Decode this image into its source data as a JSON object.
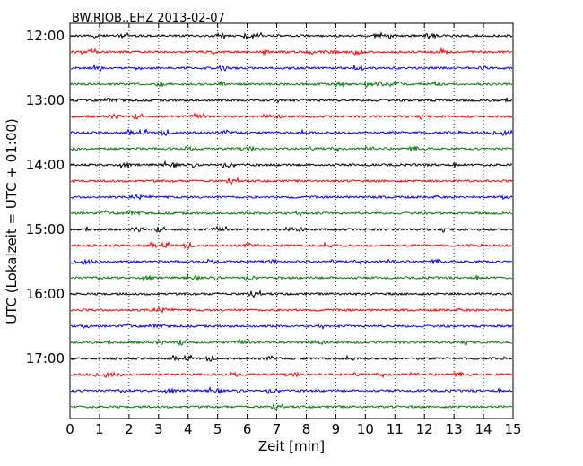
{
  "chart_data": {
    "type": "line",
    "title": "BW.RJOB..EHZ 2013-02-07",
    "xlabel": "Zeit  [min]",
    "ylabel": "UTC (Lokalzeit = UTC + 01:00)",
    "xlim": [
      0,
      15
    ],
    "x_ticks": [
      "0",
      "1",
      "2",
      "3",
      "4",
      "5",
      "6",
      "7",
      "8",
      "9",
      "10",
      "11",
      "12",
      "13",
      "14",
      "15"
    ],
    "y_tick_labels": [
      "12:00",
      "13:00",
      "14:00",
      "15:00",
      "16:00",
      "17:00"
    ],
    "row_interval_minutes": 15,
    "start_time": "12:00",
    "end_time": "17:45",
    "grid_x": "dotted",
    "series_colors": [
      "#000000",
      "#ff0000",
      "#0000ff",
      "#008000"
    ]
  }
}
